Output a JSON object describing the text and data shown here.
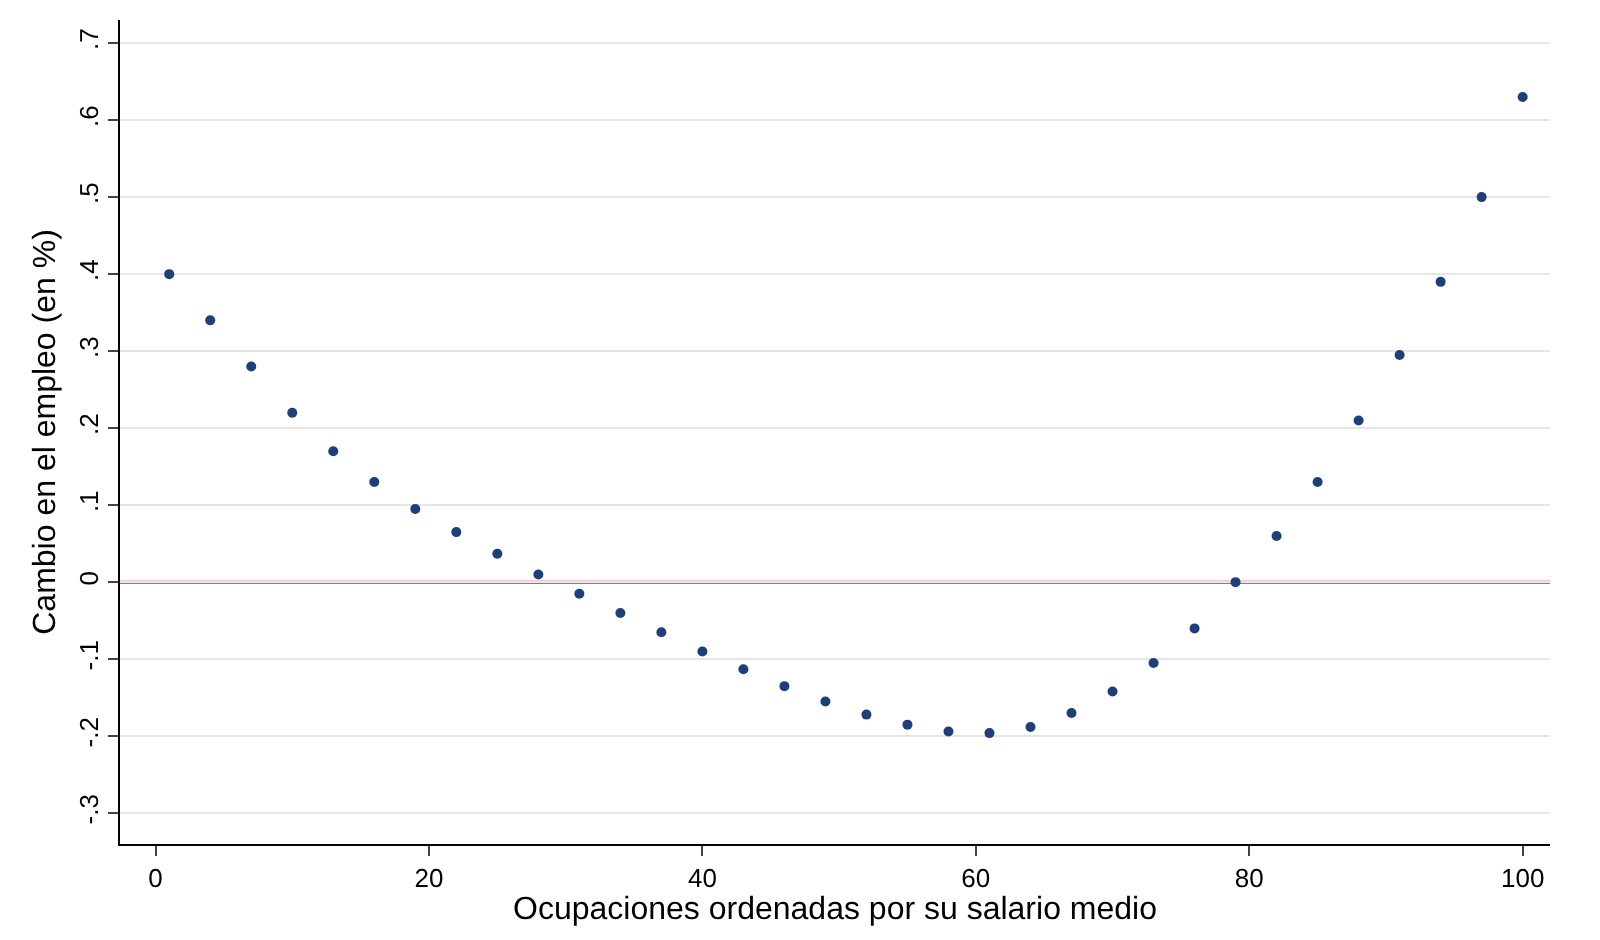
{
  "chart_data": {
    "type": "scatter",
    "xlabel": "Ocupaciones ordenadas por su salario medio",
    "ylabel": "Cambio en el empleo (en %)",
    "x": [
      1,
      4,
      7,
      10,
      13,
      16,
      19,
      22,
      25,
      28,
      31,
      34,
      37,
      40,
      43,
      46,
      49,
      52,
      55,
      58,
      61,
      64,
      67,
      70,
      73,
      76,
      79,
      82,
      85,
      88,
      91,
      94,
      97,
      100
    ],
    "series": [
      {
        "color": "#1f3f7a",
        "values": [
          0.4,
          0.34,
          0.28,
          0.22,
          0.17,
          0.13,
          0.095,
          0.065,
          0.037,
          0.01,
          -0.015,
          -0.04,
          -0.065,
          -0.09,
          -0.113,
          -0.135,
          -0.155,
          -0.172,
          -0.185,
          -0.194,
          -0.196,
          -0.188,
          -0.17,
          -0.142,
          -0.105,
          -0.06,
          0.0,
          0.06,
          0.13,
          0.21,
          0.295,
          0.39,
          0.5,
          0.63
        ]
      }
    ],
    "xlim": [
      -2.6,
      102
    ],
    "ylim": [
      -0.34,
      0.73
    ],
    "xticks": [
      0,
      20,
      40,
      60,
      80,
      100
    ],
    "yticks": [
      {
        "value": -0.3,
        "label": "-.3"
      },
      {
        "value": -0.2,
        "label": "-.2"
      },
      {
        "value": -0.1,
        "label": "-.1"
      },
      0,
      {
        "value": 0.1,
        "label": ".1"
      },
      {
        "value": 0.2,
        "label": ".2"
      },
      {
        "value": 0.3,
        "label": ".3"
      },
      {
        "value": 0.4,
        "label": ".4"
      },
      {
        "value": 0.5,
        "label": ".5"
      },
      {
        "value": 0.6,
        "label": ".6"
      },
      {
        "value": 0.7,
        "label": ".7"
      }
    ],
    "ref_lines": [
      {
        "axis": "y",
        "value": 0,
        "color": "#d62030"
      }
    ],
    "grid": "y",
    "marker": "circle",
    "legend": false
  }
}
